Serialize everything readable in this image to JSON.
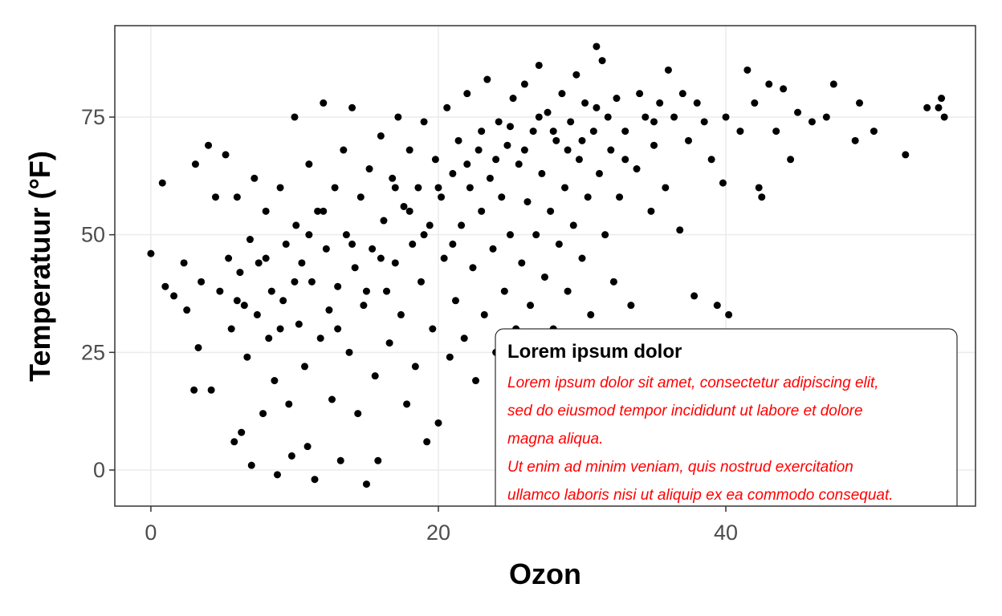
{
  "chart_data": {
    "type": "scatter",
    "x_label": "Ozon",
    "y_label": "Temperatuur (°F)",
    "xlim": [
      -2.51,
      57.37
    ],
    "ylim": [
      -7.67,
      94.43
    ],
    "xticks": [
      0,
      20,
      40
    ],
    "yticks": [
      0,
      25,
      50,
      75
    ],
    "grid": true,
    "color": "#000000",
    "x": [
      0,
      0.8,
      1,
      1.6,
      2.3,
      2.5,
      3,
      3.1,
      3.3,
      3.5,
      4,
      4.2,
      4.5,
      4.8,
      5.2,
      5.4,
      5.6,
      5.8,
      6,
      6.2,
      6.3,
      6.5,
      6.7,
      6.9,
      7,
      7.2,
      7.4,
      7.5,
      7.8,
      8,
      8.2,
      8.4,
      8.6,
      8.8,
      9,
      9.2,
      9.4,
      9.6,
      9.8,
      10,
      10.1,
      10.3,
      10.5,
      10.7,
      10.9,
      11,
      11.2,
      11.4,
      11.6,
      11.8,
      12,
      12.2,
      12.4,
      12.6,
      12.8,
      13,
      13.2,
      13.4,
      13.6,
      13.8,
      14,
      14.2,
      14.4,
      14.6,
      14.8,
      15,
      15.2,
      15.4,
      15.6,
      15.8,
      16,
      16.2,
      16.4,
      16.6,
      16.8,
      17,
      17.2,
      17.4,
      17.6,
      17.8,
      18,
      18.2,
      18.4,
      18.6,
      18.8,
      19,
      19.2,
      19.4,
      19.6,
      19.8,
      20,
      20.2,
      20.4,
      20.6,
      20.8,
      21,
      21.2,
      21.4,
      21.6,
      21.8,
      22,
      22.2,
      22.4,
      22.6,
      22.8,
      23,
      23.2,
      23.4,
      23.6,
      23.8,
      24,
      24.2,
      24.4,
      24.6,
      24.8,
      25,
      25.2,
      25.4,
      25.6,
      25.8,
      26,
      26.2,
      26.4,
      26.6,
      26.8,
      27,
      27.2,
      27.4,
      27.6,
      27.8,
      28,
      28.2,
      28.4,
      28.6,
      28.8,
      29,
      29.2,
      29.4,
      29.6,
      29.8,
      30,
      30.2,
      30.4,
      30.6,
      30.8,
      31,
      31.2,
      31.4,
      31.6,
      31.8,
      32,
      32.2,
      32.4,
      32.6,
      33,
      33.4,
      33.8,
      34,
      34.4,
      34.8,
      35,
      35.4,
      35.8,
      36,
      36.4,
      36.8,
      37,
      37.4,
      37.8,
      38,
      38.5,
      39,
      39.4,
      39.8,
      40,
      40.2,
      41,
      41.5,
      42,
      42.3,
      42.5,
      43,
      43.5,
      44,
      44.5,
      45,
      46,
      47,
      47.5,
      49,
      49.3,
      50.3,
      52.5,
      54,
      54.8,
      55,
      55.2,
      12,
      14,
      16,
      18,
      20,
      22,
      24,
      26,
      28,
      30,
      10,
      8,
      6,
      9,
      11,
      13,
      15,
      17,
      19,
      21,
      23,
      25,
      27,
      29,
      31,
      33,
      35
    ],
    "values": [
      46,
      61,
      39,
      37,
      44,
      34,
      17,
      65,
      26,
      40,
      69,
      17,
      58,
      38,
      67,
      45,
      30,
      6,
      58,
      42,
      8,
      35,
      24,
      49,
      1,
      62,
      33,
      44,
      12,
      55,
      28,
      38,
      19,
      -1,
      60,
      36,
      48,
      14,
      3,
      75,
      52,
      31,
      44,
      22,
      5,
      65,
      40,
      -2,
      55,
      28,
      78,
      47,
      34,
      15,
      60,
      39,
      2,
      68,
      50,
      25,
      77,
      43,
      12,
      58,
      35,
      -3,
      64,
      47,
      20,
      2,
      71,
      53,
      38,
      27,
      62,
      44,
      75,
      33,
      56,
      14,
      68,
      48,
      22,
      60,
      40,
      74,
      6,
      52,
      30,
      66,
      10,
      58,
      45,
      77,
      24,
      63,
      36,
      70,
      52,
      28,
      80,
      60,
      43,
      19,
      68,
      55,
      33,
      83,
      62,
      47,
      25,
      74,
      58,
      38,
      69,
      50,
      79,
      30,
      65,
      44,
      82,
      57,
      35,
      72,
      50,
      86,
      63,
      41,
      76,
      55,
      30,
      70,
      48,
      80,
      60,
      38,
      74,
      52,
      84,
      66,
      45,
      78,
      58,
      33,
      72,
      90,
      63,
      87,
      50,
      75,
      68,
      40,
      79,
      58,
      72,
      35,
      64,
      80,
      75,
      55,
      69,
      78,
      60,
      85,
      75,
      51,
      80,
      70,
      37,
      78,
      74,
      66,
      35,
      61,
      75,
      33,
      72,
      85,
      78,
      60,
      58,
      82,
      72,
      81,
      66,
      76,
      74,
      75,
      82,
      70,
      78,
      72,
      67,
      77,
      77,
      79,
      75,
      55,
      48,
      45,
      55,
      60,
      65,
      66,
      68,
      72,
      70,
      40,
      45,
      36,
      30,
      50,
      30,
      38,
      60,
      50,
      48,
      72,
      73,
      75,
      68,
      77,
      66,
      74
    ],
    "annotation": {
      "title": "Lorem ipsum dolor",
      "lines": [
        "Lorem ipsum dolor sit amet, consectetur adipiscing elit,",
        "sed do eiusmod tempor incididunt ut labore et dolore",
        "magna aliqua.",
        "Ut enim ad minim veniam, quis nostrud exercitation",
        "ullamco laboris nisi ut aliquip ex ea commodo consequat."
      ]
    }
  }
}
